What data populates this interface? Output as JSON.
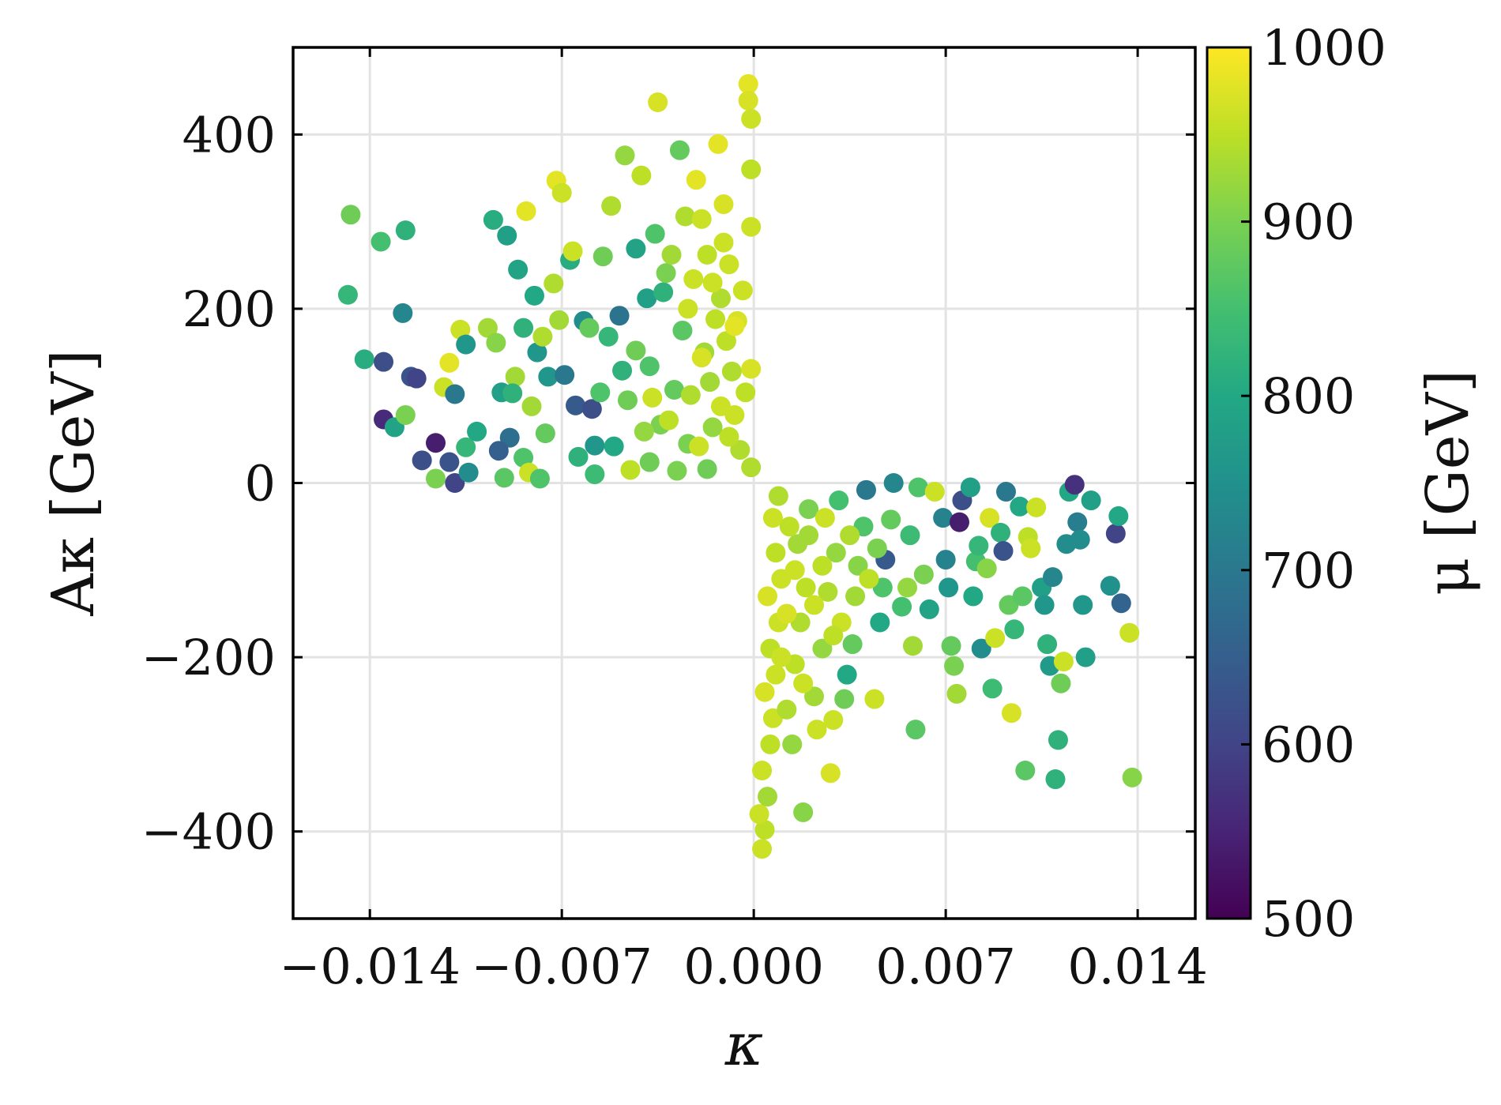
{
  "chart_data": {
    "type": "scatter",
    "title": "",
    "xlabel": "κ",
    "ylabel": "Aκ [GeV]",
    "xlim": [
      -0.0168,
      0.0161
    ],
    "ylim": [
      -500,
      500
    ],
    "xticks": [
      -0.014,
      -0.007,
      0.0,
      0.007,
      0.014
    ],
    "xtick_labels": [
      "−0.014",
      "−0.007",
      "0.000",
      "0.007",
      "0.014"
    ],
    "yticks": [
      -400,
      -200,
      0,
      200,
      400
    ],
    "ytick_labels": [
      "−400",
      "−200",
      "0",
      "200",
      "400"
    ],
    "grid": true,
    "colorbar": {
      "label": "μ [GeV]",
      "min": 500,
      "max": 1000,
      "ticks": [
        500,
        600,
        700,
        800,
        900,
        1000
      ],
      "tick_labels": [
        "500",
        "600",
        "700",
        "800",
        "900",
        "1000"
      ],
      "colormap": "viridis"
    },
    "points": [
      [
        -0.0147,
        308,
        890
      ],
      [
        -0.0148,
        216,
        830
      ],
      [
        -0.0142,
        142,
        810
      ],
      [
        -0.0136,
        277,
        850
      ],
      [
        -0.0127,
        290,
        820
      ],
      [
        -0.0128,
        195,
        730
      ],
      [
        -0.0135,
        139,
        620
      ],
      [
        -0.0125,
        122,
        630
      ],
      [
        -0.0123,
        120,
        600
      ],
      [
        -0.0135,
        73,
        560
      ],
      [
        -0.0131,
        64,
        790
      ],
      [
        -0.0127,
        78,
        900
      ],
      [
        -0.0121,
        26,
        620
      ],
      [
        -0.0116,
        46,
        540
      ],
      [
        -0.0116,
        5,
        900
      ],
      [
        -0.0111,
        24,
        630
      ],
      [
        -0.0109,
        0,
        600
      ],
      [
        -0.0104,
        12,
        740
      ],
      [
        -0.0105,
        41,
        830
      ],
      [
        -0.0101,
        59,
        800
      ],
      [
        -0.0113,
        110,
        960
      ],
      [
        -0.0111,
        138,
        980
      ],
      [
        -0.0107,
        176,
        960
      ],
      [
        -0.0105,
        159,
        760
      ],
      [
        -0.0109,
        102,
        700
      ],
      [
        -0.0097,
        178,
        930
      ],
      [
        -0.0094,
        161,
        910
      ],
      [
        -0.0092,
        104,
        780
      ],
      [
        -0.0089,
        52,
        680
      ],
      [
        -0.0093,
        37,
        650
      ],
      [
        -0.0091,
        6,
        870
      ],
      [
        -0.0095,
        302,
        810
      ],
      [
        -0.009,
        284,
        780
      ],
      [
        -0.0086,
        245,
        790
      ],
      [
        -0.0084,
        178,
        820
      ],
      [
        -0.0087,
        122,
        930
      ],
      [
        -0.0088,
        103,
        820
      ],
      [
        -0.0084,
        29,
        860
      ],
      [
        -0.0082,
        12,
        960
      ],
      [
        -0.0083,
        312,
        980
      ],
      [
        -0.008,
        215,
        800
      ],
      [
        -0.0079,
        150,
        760
      ],
      [
        -0.0081,
        88,
        930
      ],
      [
        -0.0077,
        168,
        940
      ],
      [
        -0.0075,
        122,
        760
      ],
      [
        -0.0076,
        57,
        880
      ],
      [
        -0.0078,
        5,
        860
      ],
      [
        -0.0073,
        229,
        940
      ],
      [
        -0.0071,
        187,
        930
      ],
      [
        -0.0072,
        347,
        980
      ],
      [
        -0.007,
        333,
        960
      ],
      [
        -0.0069,
        124,
        700
      ],
      [
        -0.0067,
        256,
        810
      ],
      [
        -0.0066,
        266,
        960
      ],
      [
        -0.0065,
        89,
        640
      ],
      [
        -0.0064,
        30,
        820
      ],
      [
        -0.0062,
        186,
        740
      ],
      [
        -0.006,
        178,
        880
      ],
      [
        -0.0059,
        85,
        620
      ],
      [
        -0.0058,
        43,
        760
      ],
      [
        -0.0058,
        10,
        840
      ],
      [
        -0.0055,
        260,
        890
      ],
      [
        -0.0056,
        104,
        860
      ],
      [
        -0.0053,
        168,
        830
      ],
      [
        -0.0052,
        318,
        940
      ],
      [
        -0.0051,
        42,
        800
      ],
      [
        -0.0049,
        192,
        690
      ],
      [
        -0.0048,
        129,
        820
      ],
      [
        -0.0047,
        376,
        920
      ],
      [
        -0.0046,
        95,
        890
      ],
      [
        -0.0045,
        15,
        950
      ],
      [
        -0.0043,
        269,
        790
      ],
      [
        -0.0041,
        353,
        950
      ],
      [
        -0.0039,
        212,
        780
      ],
      [
        -0.0038,
        134,
        860
      ],
      [
        -0.0036,
        286,
        860
      ],
      [
        -0.0035,
        437,
        970
      ],
      [
        -0.0034,
        67,
        900
      ],
      [
        -0.0033,
        219,
        820
      ],
      [
        -0.0032,
        241,
        900
      ],
      [
        -0.003,
        262,
        930
      ],
      [
        -0.0029,
        107,
        880
      ],
      [
        -0.0027,
        382,
        880
      ],
      [
        -0.0026,
        175,
        870
      ],
      [
        -0.0025,
        306,
        940
      ],
      [
        -0.0024,
        45,
        900
      ],
      [
        -0.0022,
        234,
        960
      ],
      [
        -0.0021,
        348,
        980
      ],
      [
        -0.0019,
        303,
        960
      ],
      [
        -0.0018,
        150,
        930
      ],
      [
        -0.0017,
        262,
        950
      ],
      [
        -0.0016,
        116,
        930
      ],
      [
        -0.0015,
        64,
        920
      ],
      [
        -0.0014,
        188,
        950
      ],
      [
        -0.0013,
        389,
        980
      ],
      [
        -0.0012,
        212,
        940
      ],
      [
        -0.0011,
        320,
        970
      ],
      [
        -0.001,
        163,
        950
      ],
      [
        -0.0009,
        251,
        960
      ],
      [
        -0.0008,
        128,
        940
      ],
      [
        -0.0007,
        78,
        960
      ],
      [
        -0.0006,
        186,
        970
      ],
      [
        -0.0005,
        38,
        940
      ],
      [
        -0.0004,
        221,
        960
      ],
      [
        -0.0003,
        104,
        950
      ],
      [
        -0.0002,
        458,
        980
      ],
      [
        -0.0002,
        439,
        970
      ],
      [
        -0.0001,
        418,
        960
      ],
      [
        -0.0001,
        360,
        950
      ],
      [
        -0.0001,
        294,
        960
      ],
      [
        -0.0001,
        131,
        970
      ],
      [
        -0.0001,
        18,
        940
      ],
      [
        -0.0038,
        24,
        890
      ],
      [
        -0.0031,
        72,
        950
      ],
      [
        -0.0023,
        101,
        940
      ],
      [
        -0.0043,
        152,
        890
      ],
      [
        -0.004,
        59,
        920
      ],
      [
        -0.0037,
        98,
        960
      ],
      [
        -0.0028,
        14,
        900
      ],
      [
        -0.002,
        42,
        960
      ],
      [
        -0.0017,
        16,
        890
      ],
      [
        -0.0012,
        88,
        960
      ],
      [
        -0.0009,
        53,
        950
      ],
      [
        -0.0024,
        200,
        960
      ],
      [
        -0.0019,
        144,
        970
      ],
      [
        -0.0015,
        230,
        960
      ],
      [
        -0.0011,
        276,
        960
      ],
      [
        -0.0007,
        180,
        980
      ],
      [
        0.0003,
        -420,
        960
      ],
      [
        0.0004,
        -398,
        950
      ],
      [
        0.0002,
        -380,
        960
      ],
      [
        0.0005,
        -360,
        930
      ],
      [
        0.0003,
        -330,
        960
      ],
      [
        0.0006,
        -300,
        950
      ],
      [
        0.0007,
        -270,
        960
      ],
      [
        0.0004,
        -240,
        970
      ],
      [
        0.0008,
        -220,
        960
      ],
      [
        0.0006,
        -190,
        950
      ],
      [
        0.0009,
        -160,
        960
      ],
      [
        0.0005,
        -130,
        970
      ],
      [
        0.001,
        -110,
        960
      ],
      [
        0.0008,
        -80,
        950
      ],
      [
        0.0007,
        -40,
        960
      ],
      [
        0.0009,
        -15,
        940
      ],
      [
        0.0012,
        -260,
        940
      ],
      [
        0.0014,
        -300,
        920
      ],
      [
        0.0018,
        -378,
        910
      ],
      [
        0.0015,
        -208,
        950
      ],
      [
        0.0017,
        -160,
        940
      ],
      [
        0.0019,
        -120,
        950
      ],
      [
        0.0016,
        -70,
        930
      ],
      [
        0.002,
        -30,
        900
      ],
      [
        0.0022,
        -245,
        930
      ],
      [
        0.0023,
        -283,
        960
      ],
      [
        0.0025,
        -190,
        920
      ],
      [
        0.0027,
        -125,
        940
      ],
      [
        0.0028,
        -333,
        970
      ],
      [
        0.0029,
        -272,
        960
      ],
      [
        0.003,
        -80,
        920
      ],
      [
        0.0031,
        -20,
        850
      ],
      [
        0.0033,
        -248,
        890
      ],
      [
        0.0034,
        -220,
        800
      ],
      [
        0.0036,
        -185,
        880
      ],
      [
        0.0037,
        -130,
        930
      ],
      [
        0.0038,
        -95,
        910
      ],
      [
        0.004,
        -50,
        860
      ],
      [
        0.0041,
        -8,
        700
      ],
      [
        0.0044,
        -248,
        960
      ],
      [
        0.0046,
        -160,
        800
      ],
      [
        0.0047,
        -120,
        860
      ],
      [
        0.0048,
        -88,
        640
      ],
      [
        0.005,
        -42,
        880
      ],
      [
        0.0051,
        0,
        730
      ],
      [
        0.0054,
        -142,
        850
      ],
      [
        0.0056,
        -120,
        920
      ],
      [
        0.0057,
        -60,
        840
      ],
      [
        0.0058,
        -187,
        930
      ],
      [
        0.0059,
        -283,
        870
      ],
      [
        0.006,
        -5,
        860
      ],
      [
        0.0062,
        -105,
        900
      ],
      [
        0.0064,
        -145,
        790
      ],
      [
        0.0066,
        -10,
        960
      ],
      [
        0.0069,
        -40,
        720
      ],
      [
        0.007,
        -88,
        720
      ],
      [
        0.0071,
        -120,
        760
      ],
      [
        0.0072,
        -187,
        880
      ],
      [
        0.0073,
        -210,
        900
      ],
      [
        0.0074,
        -242,
        930
      ],
      [
        0.0075,
        -45,
        540
      ],
      [
        0.0076,
        -20,
        620
      ],
      [
        0.0079,
        -5,
        780
      ],
      [
        0.008,
        -130,
        800
      ],
      [
        0.0081,
        -90,
        850
      ],
      [
        0.0082,
        -72,
        830
      ],
      [
        0.0083,
        -190,
        740
      ],
      [
        0.0085,
        -98,
        910
      ],
      [
        0.0086,
        -40,
        970
      ],
      [
        0.0087,
        -236,
        840
      ],
      [
        0.0088,
        -178,
        960
      ],
      [
        0.009,
        -57,
        820
      ],
      [
        0.0091,
        -78,
        630
      ],
      [
        0.0092,
        -10,
        700
      ],
      [
        0.0093,
        -140,
        880
      ],
      [
        0.0094,
        -264,
        970
      ],
      [
        0.0095,
        -168,
        830
      ],
      [
        0.0097,
        -27,
        800
      ],
      [
        0.0098,
        -130,
        870
      ],
      [
        0.0099,
        -330,
        870
      ],
      [
        0.01,
        -62,
        950
      ],
      [
        0.0101,
        -75,
        960
      ],
      [
        0.0103,
        -28,
        960
      ],
      [
        0.0105,
        -120,
        780
      ],
      [
        0.0106,
        -140,
        760
      ],
      [
        0.0107,
        -185,
        820
      ],
      [
        0.0108,
        -210,
        770
      ],
      [
        0.0109,
        -108,
        730
      ],
      [
        0.011,
        -340,
        820
      ],
      [
        0.0111,
        -295,
        820
      ],
      [
        0.0112,
        -230,
        890
      ],
      [
        0.0113,
        -205,
        960
      ],
      [
        0.0114,
        -70,
        740
      ],
      [
        0.0115,
        -10,
        800
      ],
      [
        0.0117,
        -2,
        570
      ],
      [
        0.0118,
        -45,
        710
      ],
      [
        0.0119,
        -65,
        740
      ],
      [
        0.012,
        -140,
        760
      ],
      [
        0.0121,
        -200,
        780
      ],
      [
        0.0123,
        -20,
        780
      ],
      [
        0.013,
        -118,
        750
      ],
      [
        0.0132,
        -58,
        600
      ],
      [
        0.0133,
        -38,
        800
      ],
      [
        0.0134,
        -138,
        660
      ],
      [
        0.0137,
        -172,
        960
      ],
      [
        0.0138,
        -338,
        910
      ],
      [
        0.0015,
        -100,
        960
      ],
      [
        0.002,
        -60,
        930
      ],
      [
        0.0012,
        -150,
        970
      ],
      [
        0.0025,
        -95,
        950
      ],
      [
        0.0032,
        -160,
        960
      ],
      [
        0.001,
        -200,
        960
      ],
      [
        0.0018,
        -230,
        960
      ],
      [
        0.0013,
        -50,
        950
      ],
      [
        0.0035,
        -60,
        940
      ],
      [
        0.0026,
        -40,
        960
      ],
      [
        0.0042,
        -110,
        950
      ],
      [
        0.0022,
        -140,
        960
      ],
      [
        0.0045,
        -75,
        900
      ],
      [
        0.0029,
        -175,
        950
      ]
    ]
  }
}
